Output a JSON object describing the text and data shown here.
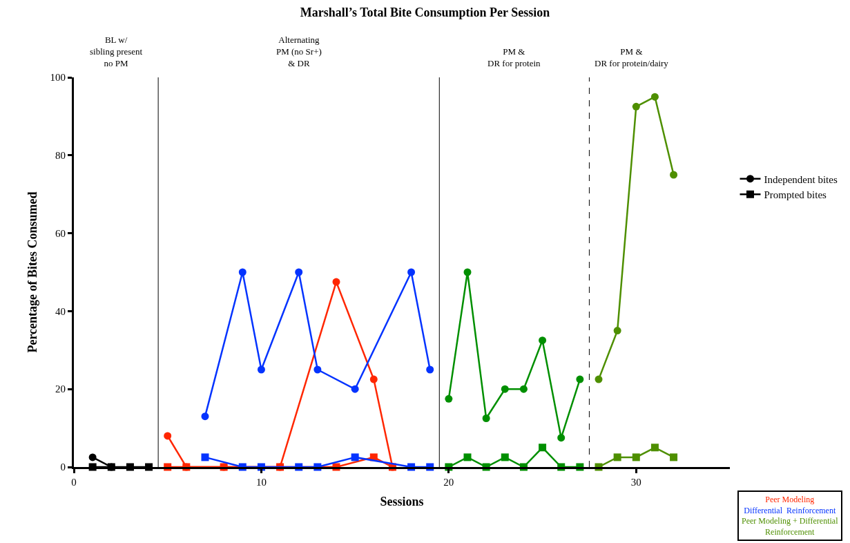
{
  "chart_data": {
    "type": "line",
    "title": "Marshall’s Total Bite Consumption Per Session",
    "xlabel": "Sessions",
    "ylabel": "Percentage of Bites Consumed",
    "xlim": [
      0,
      35
    ],
    "xticks": [
      0,
      10,
      20,
      30
    ],
    "ylim": [
      0,
      100
    ],
    "yticks": [
      0,
      20,
      40,
      60,
      80,
      100
    ],
    "legend": "right",
    "series": [
      {
        "name": "Independent bites",
        "color": "#000000",
        "marker": "circle",
        "x": [
          1,
          2
        ],
        "values": [
          2.5,
          0
        ]
      },
      {
        "name": "Prompted bites",
        "color": "#000000",
        "marker": "square",
        "x": [
          1,
          2,
          3,
          4
        ],
        "values": [
          0,
          0,
          0,
          0
        ]
      },
      {
        "color": "#ff2600",
        "marker": "circle",
        "x": [
          5,
          6,
          8,
          11,
          14,
          16,
          17
        ],
        "values": [
          8,
          0,
          0,
          0,
          47.5,
          22.5,
          0
        ]
      },
      {
        "color": "#ff2600",
        "marker": "square",
        "x": [
          5,
          6,
          8,
          11,
          14,
          16,
          17
        ],
        "values": [
          0,
          0,
          0,
          0,
          0,
          2.5,
          0
        ]
      },
      {
        "color": "#0433ff",
        "marker": "circle",
        "x": [
          7,
          9,
          10,
          12,
          13,
          15,
          18,
          19
        ],
        "values": [
          13,
          50,
          25,
          50,
          25,
          20,
          50,
          25
        ]
      },
      {
        "color": "#0433ff",
        "marker": "square",
        "x": [
          7,
          9,
          10,
          12,
          13,
          15,
          18,
          19
        ],
        "values": [
          2.5,
          0,
          0,
          0,
          0,
          2.5,
          0,
          0
        ]
      },
      {
        "color": "#008f00",
        "marker": "circle",
        "x": [
          20,
          21,
          22,
          23,
          24,
          25,
          26,
          27
        ],
        "values": [
          17.5,
          50,
          12.5,
          20,
          20,
          32.5,
          7.5,
          22.5
        ]
      },
      {
        "color": "#008f00",
        "marker": "square",
        "x": [
          20,
          21,
          22,
          23,
          24,
          25,
          26,
          27
        ],
        "values": [
          0,
          2.5,
          0,
          2.5,
          0,
          5,
          0,
          0
        ]
      },
      {
        "color": "#4e8f00",
        "marker": "circle",
        "x": [
          28,
          29,
          30,
          31,
          32
        ],
        "values": [
          22.5,
          35,
          92.5,
          95,
          75
        ]
      },
      {
        "color": "#4e8f00",
        "marker": "square",
        "x": [
          28,
          29,
          30,
          31,
          32
        ],
        "values": [
          0,
          2.5,
          2.5,
          5,
          2.5
        ]
      }
    ],
    "ref_lines": [
      {
        "axis": "x",
        "value": 4.5,
        "line_style": "solid"
      },
      {
        "axis": "x",
        "value": 19.5,
        "line_style": "solid"
      },
      {
        "axis": "x",
        "value": 27.5,
        "line_style": "dashed"
      }
    ],
    "annotations": [
      "BL w/\nsibling present\nno PM",
      "Alternating\nPM (no Sr+)\n& DR",
      "PM &\nDR for protein",
      "PM &\nDR for protein/dairy",
      "Peer Modeling",
      "Differential  Reinforcement",
      "Peer Modeling + Differential\nReinforcement"
    ]
  }
}
